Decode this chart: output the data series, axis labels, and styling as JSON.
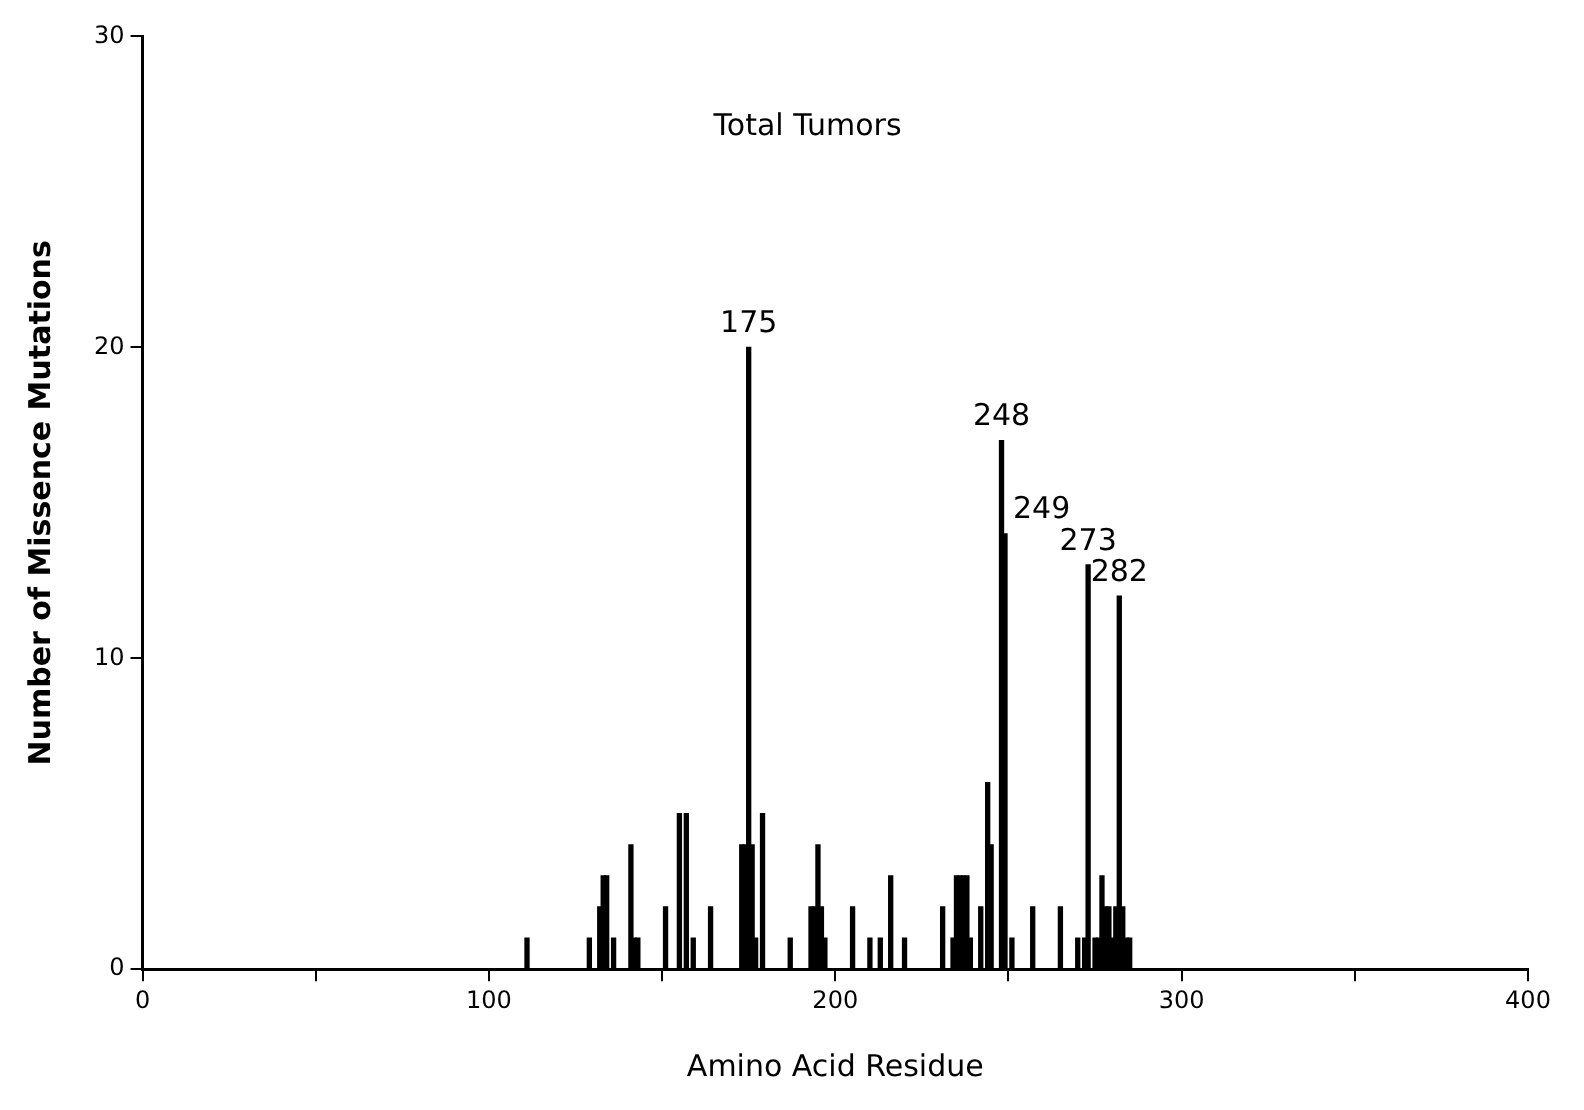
{
  "chart_data": {
    "type": "bar",
    "title": "Total Tumors",
    "xlabel": "Amino Acid Residue",
    "ylabel": "Number of Missence Mutations",
    "x": [
      111,
      129,
      132,
      133,
      134,
      136,
      141,
      142,
      143,
      151,
      155,
      157,
      159,
      164,
      173,
      174,
      175,
      176,
      177,
      179,
      187,
      193,
      194,
      195,
      196,
      197,
      205,
      210,
      213,
      216,
      220,
      231,
      234,
      235,
      236,
      237,
      238,
      239,
      242,
      244,
      245,
      248,
      249,
      251,
      257,
      265,
      270,
      272,
      273,
      275,
      276,
      277,
      278,
      279,
      280,
      281,
      282,
      283,
      284,
      285
    ],
    "values": [
      1,
      1,
      2,
      3,
      3,
      1,
      4,
      1,
      1,
      2,
      5,
      5,
      1,
      2,
      4,
      4,
      20,
      4,
      1,
      5,
      1,
      2,
      2,
      4,
      2,
      1,
      2,
      1,
      1,
      3,
      1,
      2,
      1,
      3,
      3,
      3,
      3,
      1,
      2,
      6,
      4,
      17,
      14,
      1,
      2,
      2,
      1,
      1,
      13,
      1,
      1,
      3,
      2,
      2,
      1,
      2,
      12,
      2,
      1,
      1
    ],
    "color": "#000000",
    "xlim": [
      0,
      400
    ],
    "xticks": [
      0,
      {
        "value": 50,
        "label": null
      },
      100,
      {
        "value": 150,
        "label": null
      },
      200,
      {
        "value": 250,
        "label": null
      },
      300,
      {
        "value": 350,
        "label": null
      },
      400
    ],
    "ylim": [
      0,
      30
    ],
    "yticks": [
      0,
      10,
      20,
      30
    ],
    "grid": false,
    "legend": false,
    "annotations": [
      {
        "text": "175",
        "x": 175,
        "y": 20
      },
      {
        "text": "248",
        "x": 248,
        "y": 17
      },
      {
        "text": "249",
        "x": 249,
        "y": 14
      },
      {
        "text": "273",
        "x": 273,
        "y": 13
      },
      {
        "text": "282",
        "x": 282,
        "y": 12
      }
    ]
  }
}
